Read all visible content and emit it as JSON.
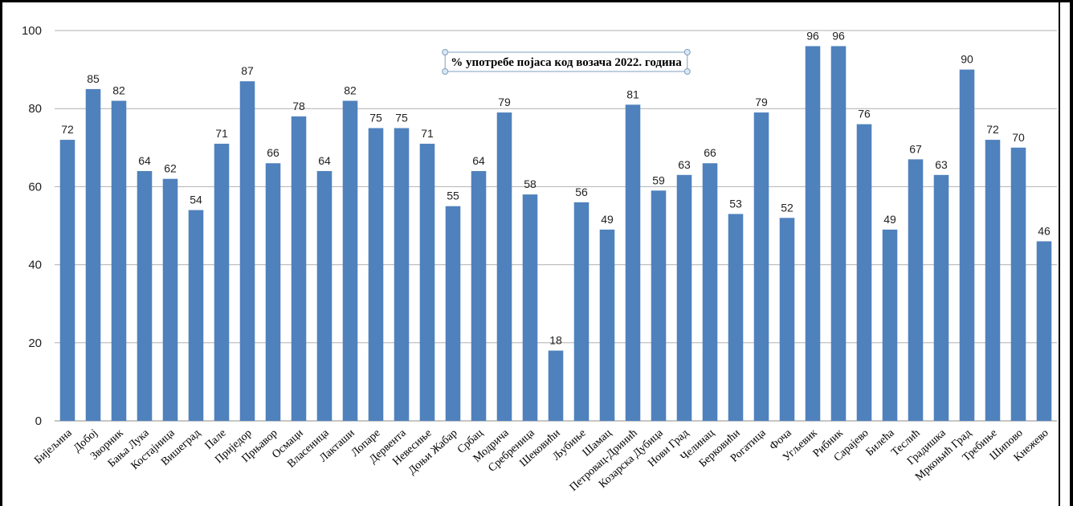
{
  "chart_data": {
    "type": "bar",
    "title": "% употребе појаса код возача 2022. година",
    "xlabel": "",
    "ylabel": "",
    "ylim": [
      0,
      100
    ],
    "yticks": [
      "0",
      "20",
      "40",
      "60",
      "80",
      "100"
    ],
    "grid": true,
    "legend": "none",
    "bar_color": "#4F81BD",
    "categories": [
      "Бијељина",
      "Добој",
      "Зворник",
      "Бања Лука",
      "Костајница",
      "Вишеград",
      "Пале",
      "Приједор",
      "Прњавор",
      "Осмаци",
      "Власеница",
      "Лакташи",
      "Лопаре",
      "Дервента",
      "Невесиње",
      "Доњи Жабар",
      "Србац",
      "Модрича",
      "Сребреница",
      "Шековићи",
      "Љубиње",
      "Шамац",
      "Петровац-Дринић",
      "Козарска Дубица",
      "Нови Град",
      "Челинац",
      "Берковићи",
      "Рогатица",
      "Фоча",
      "Угљевик",
      "Рибник",
      "Сарајево",
      "Билећа",
      "Теслић",
      "Градишка",
      "Мркоњић Град",
      "Требиње",
      "Шипово",
      "Кнежево"
    ],
    "values": [
      72,
      85,
      82,
      64,
      62,
      54,
      71,
      87,
      66,
      78,
      64,
      82,
      75,
      75,
      71,
      55,
      64,
      79,
      58,
      18,
      56,
      49,
      81,
      59,
      63,
      66,
      53,
      79,
      52,
      96,
      96,
      76,
      49,
      67,
      63,
      90,
      72,
      70,
      46
    ]
  }
}
